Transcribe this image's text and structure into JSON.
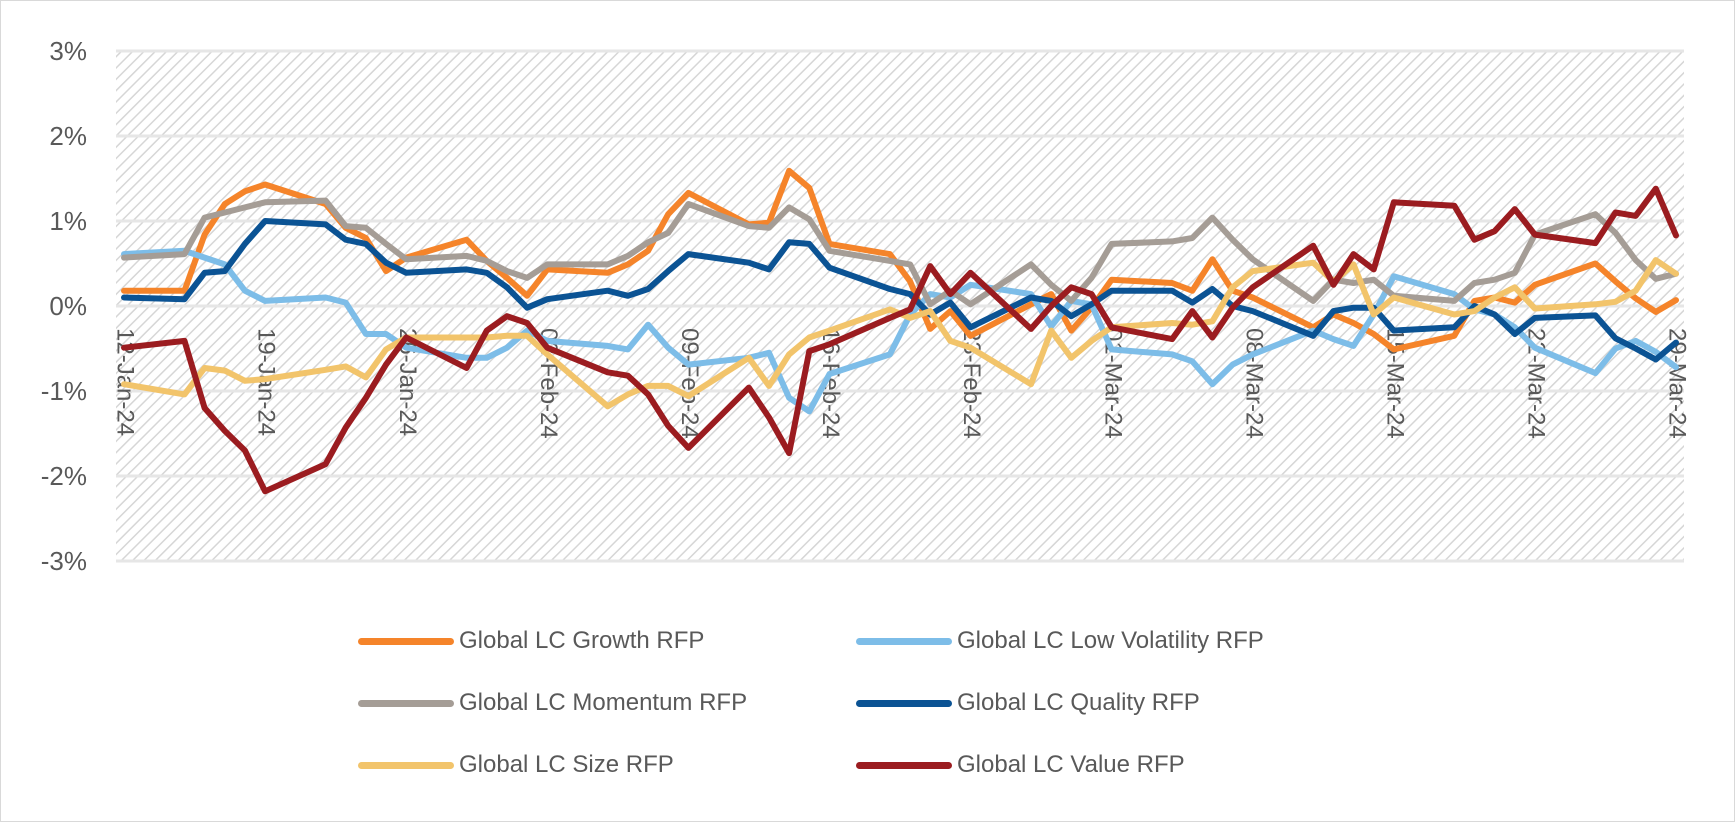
{
  "chart_data": {
    "type": "line",
    "title": "",
    "xlabel": "",
    "ylabel": "",
    "ylim": [
      -3,
      3
    ],
    "y_ticks": [
      "3%",
      "2%",
      "1%",
      "0%",
      "-1%",
      "-2%",
      "-3%"
    ],
    "y_tick_values": [
      3,
      2,
      1,
      0,
      -1,
      -2,
      -3
    ],
    "x_ticks": [
      "12-Jan-24",
      "19-Jan-24",
      "26-Jan-24",
      "02-Feb-24",
      "09-Feb-24",
      "16-Feb-24",
      "23-Feb-24",
      "01-Mar-24",
      "08-Mar-24",
      "15-Mar-24",
      "22-Mar-24",
      "29-Mar-24"
    ],
    "grid": true,
    "background": "diagonal hatch",
    "legend_position": "bottom",
    "x": [
      "12-Jan-24",
      "15-Jan-24",
      "16-Jan-24",
      "17-Jan-24",
      "18-Jan-24",
      "19-Jan-24",
      "22-Jan-24",
      "23-Jan-24",
      "24-Jan-24",
      "25-Jan-24",
      "26-Jan-24",
      "29-Jan-24",
      "30-Jan-24",
      "31-Jan-24",
      "01-Feb-24",
      "02-Feb-24",
      "05-Feb-24",
      "06-Feb-24",
      "07-Feb-24",
      "08-Feb-24",
      "09-Feb-24",
      "12-Feb-24",
      "13-Feb-24",
      "14-Feb-24",
      "15-Feb-24",
      "16-Feb-24",
      "19-Feb-24",
      "20-Feb-24",
      "21-Feb-24",
      "22-Feb-24",
      "23-Feb-24",
      "26-Feb-24",
      "27-Feb-24",
      "28-Feb-24",
      "29-Feb-24",
      "01-Mar-24",
      "04-Mar-24",
      "05-Mar-24",
      "06-Mar-24",
      "07-Mar-24",
      "08-Mar-24",
      "11-Mar-24",
      "12-Mar-24",
      "13-Mar-24",
      "14-Mar-24",
      "15-Mar-24",
      "18-Mar-24",
      "19-Mar-24",
      "20-Mar-24",
      "21-Mar-24",
      "22-Mar-24",
      "25-Mar-24",
      "26-Mar-24",
      "27-Mar-24",
      "28-Mar-24",
      "29-Mar-24"
    ],
    "series": [
      {
        "name": "Global LC Growth RFP",
        "color": "#f5842a",
        "values": [
          0.18,
          0.18,
          0.84,
          1.2,
          1.35,
          1.43,
          1.2,
          0.92,
          0.8,
          0.41,
          0.57,
          0.78,
          0.53,
          0.33,
          0.12,
          0.43,
          0.39,
          0.49,
          0.65,
          1.08,
          1.33,
          0.96,
          0.98,
          1.59,
          1.39,
          0.73,
          0.61,
          0.29,
          -0.27,
          -0.06,
          -0.35,
          0.02,
          0.14,
          -0.29,
          -0.02,
          0.31,
          0.27,
          0.18,
          0.55,
          0.18,
          0.1,
          -0.25,
          -0.1,
          -0.2,
          -0.33,
          -0.51,
          -0.35,
          0.06,
          0.1,
          0.04,
          0.25,
          0.5,
          0.29,
          0.09,
          -0.07,
          0.07
        ]
      },
      {
        "name": "Global LC Low Volatility RFP",
        "color": "#7dbde8",
        "values": [
          0.61,
          0.65,
          0.57,
          0.49,
          0.18,
          0.06,
          0.1,
          0.04,
          -0.33,
          -0.33,
          -0.49,
          -0.61,
          -0.61,
          -0.49,
          -0.29,
          -0.41,
          -0.47,
          -0.51,
          -0.22,
          -0.49,
          -0.69,
          -0.61,
          -0.55,
          -1.08,
          -1.24,
          -0.8,
          -0.57,
          -0.1,
          0.14,
          0.1,
          0.25,
          0.14,
          -0.24,
          0.06,
          0.02,
          -0.51,
          -0.57,
          -0.65,
          -0.92,
          -0.69,
          -0.57,
          -0.29,
          -0.39,
          -0.47,
          -0.1,
          0.35,
          0.14,
          -0.04,
          -0.1,
          -0.25,
          -0.49,
          -0.79,
          -0.5,
          -0.41,
          -0.54,
          -0.72
        ]
      },
      {
        "name": "Global LC Momentum RFP",
        "color": "#a59d96",
        "values": [
          0.57,
          0.61,
          1.04,
          1.1,
          1.16,
          1.22,
          1.24,
          0.94,
          0.92,
          0.73,
          0.55,
          0.59,
          0.53,
          0.41,
          0.33,
          0.49,
          0.49,
          0.59,
          0.75,
          0.86,
          1.2,
          0.94,
          0.92,
          1.16,
          1.02,
          0.65,
          0.53,
          0.49,
          0.02,
          0.18,
          0.02,
          0.49,
          0.25,
          0.06,
          0.33,
          0.73,
          0.76,
          0.8,
          1.04,
          0.78,
          0.55,
          0.06,
          0.31,
          0.27,
          0.31,
          0.12,
          0.06,
          0.27,
          0.31,
          0.39,
          0.84,
          1.08,
          0.86,
          0.54,
          0.32,
          0.38
        ]
      },
      {
        "name": "Global LC Quality RFP",
        "color": "#0b5394",
        "values": [
          0.1,
          0.08,
          0.39,
          0.41,
          0.73,
          1.0,
          0.96,
          0.78,
          0.73,
          0.51,
          0.39,
          0.43,
          0.39,
          0.22,
          -0.02,
          0.08,
          0.18,
          0.12,
          0.2,
          0.41,
          0.61,
          0.51,
          0.43,
          0.75,
          0.73,
          0.45,
          0.2,
          0.14,
          -0.1,
          0.04,
          -0.25,
          0.1,
          0.06,
          -0.12,
          0.02,
          0.18,
          0.18,
          0.04,
          0.2,
          0.0,
          -0.06,
          -0.35,
          -0.06,
          -0.02,
          -0.02,
          -0.29,
          -0.25,
          0.0,
          -0.1,
          -0.33,
          -0.14,
          -0.11,
          -0.38,
          -0.5,
          -0.63,
          -0.43
        ]
      },
      {
        "name": "Global LC Size RFP",
        "color": "#f2c46b",
        "values": [
          -0.92,
          -1.04,
          -0.73,
          -0.76,
          -0.88,
          -0.86,
          -0.75,
          -0.71,
          -0.84,
          -0.51,
          -0.37,
          -0.37,
          -0.37,
          -0.35,
          -0.35,
          -0.57,
          -1.18,
          -1.04,
          -0.94,
          -0.94,
          -1.06,
          -0.61,
          -0.94,
          -0.57,
          -0.37,
          -0.29,
          -0.04,
          -0.14,
          -0.06,
          -0.41,
          -0.49,
          -0.92,
          -0.29,
          -0.61,
          -0.41,
          -0.25,
          -0.2,
          -0.22,
          -0.18,
          0.22,
          0.41,
          0.51,
          0.29,
          0.49,
          -0.1,
          0.1,
          -0.1,
          -0.06,
          0.1,
          0.22,
          -0.03,
          0.02,
          0.05,
          0.18,
          0.54,
          0.38
        ]
      },
      {
        "name": "Global LC Value RFP",
        "color": "#9b1c20",
        "values": [
          -0.49,
          -0.41,
          -1.2,
          -1.47,
          -1.7,
          -2.18,
          -1.86,
          -1.43,
          -1.08,
          -0.69,
          -0.37,
          -0.73,
          -0.29,
          -0.12,
          -0.2,
          -0.49,
          -0.78,
          -0.82,
          -1.04,
          -1.41,
          -1.67,
          -0.96,
          -1.31,
          -1.73,
          -0.53,
          -0.45,
          -0.14,
          -0.04,
          0.47,
          0.14,
          0.39,
          -0.27,
          0.0,
          0.22,
          0.14,
          -0.25,
          -0.39,
          -0.06,
          -0.37,
          -0.02,
          0.22,
          0.71,
          0.25,
          0.61,
          0.43,
          1.22,
          1.18,
          0.78,
          0.88,
          1.14,
          0.84,
          0.74,
          1.1,
          1.06,
          1.38,
          0.83
        ]
      }
    ]
  }
}
